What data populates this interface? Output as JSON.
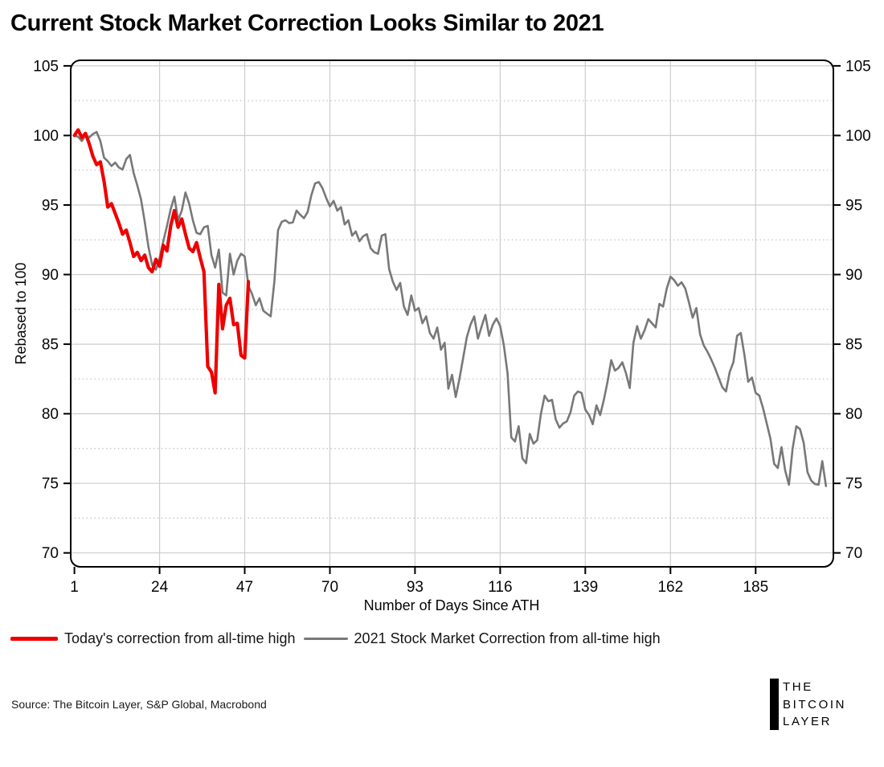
{
  "title": "Current Stock Market Correction Looks Similar to 2021",
  "source": "Source: The Bitcoin Layer, S&P Global, Macrobond",
  "logo": {
    "line1": "THE",
    "line2": "BITCOIN",
    "line3": "LAYER"
  },
  "colors": {
    "today_line": "#ee0000",
    "y2021_line": "#787878",
    "grid_major": "#cdcdcd",
    "grid_minor": "#bdbdbd",
    "axis": "#000000"
  },
  "chart_data": {
    "type": "line",
    "title": "Current Stock Market Correction Looks Similar to 2021",
    "xlabel": "Number of Days Since ATH",
    "ylabel": "Rebased to 100",
    "xlim": [
      0,
      206
    ],
    "ylim": [
      69,
      105.4
    ],
    "x_ticks": [
      1,
      24,
      47,
      70,
      93,
      116,
      139,
      162,
      185
    ],
    "y_ticks": [
      70,
      75,
      80,
      85,
      90,
      95,
      100,
      105
    ],
    "y_minor_ticks": [
      72.5,
      77.5,
      82.5,
      87.5,
      92.5,
      97.5,
      102.5
    ],
    "grid": "major solid both axes; minor horizontal dotted; y labels both sides",
    "legend_position": "bottom-left",
    "series": [
      {
        "name": "Today's correction from all-time high",
        "color": "#ee0000",
        "width": 4.2,
        "x_start": 1,
        "values": [
          100.0,
          100.4,
          99.85,
          100.15,
          99.4,
          98.5,
          97.9,
          98.1,
          96.7,
          94.85,
          95.1,
          94.4,
          93.7,
          92.9,
          93.2,
          92.3,
          91.3,
          91.6,
          91.0,
          91.4,
          90.5,
          90.2,
          91.1,
          90.6,
          92.1,
          91.7,
          93.5,
          94.6,
          93.4,
          94.0,
          92.9,
          91.9,
          91.65,
          92.3,
          91.2,
          90.2,
          83.4,
          83.0,
          81.5,
          89.3,
          86.1,
          87.8,
          88.3,
          86.4,
          86.5,
          84.2,
          84.0,
          89.5
        ]
      },
      {
        "name": "2021 Stock Market Correction from all-time high",
        "color": "#787878",
        "width": 2.6,
        "x_start": 1,
        "values": [
          100.0,
          99.9,
          99.6,
          100.0,
          99.85,
          100.1,
          100.25,
          99.6,
          98.4,
          98.15,
          97.8,
          98.05,
          97.7,
          97.55,
          98.3,
          98.6,
          97.3,
          96.4,
          95.4,
          93.8,
          92.0,
          90.7,
          90.35,
          91.2,
          92.4,
          93.5,
          94.7,
          95.6,
          93.9,
          94.6,
          95.9,
          95.1,
          93.9,
          93.0,
          92.9,
          93.4,
          93.5,
          91.4,
          90.5,
          91.8,
          88.7,
          88.5,
          91.5,
          90.0,
          91.0,
          91.5,
          91.3,
          89.2,
          88.6,
          87.8,
          88.3,
          87.4,
          87.2,
          87.0,
          89.5,
          93.2,
          93.8,
          93.9,
          93.7,
          93.75,
          94.6,
          94.3,
          94.05,
          94.5,
          95.7,
          96.55,
          96.65,
          96.2,
          95.5,
          94.9,
          95.3,
          94.6,
          94.85,
          93.6,
          93.9,
          92.8,
          93.1,
          92.4,
          92.75,
          92.9,
          91.9,
          91.6,
          91.5,
          92.8,
          92.9,
          90.4,
          89.5,
          88.9,
          89.4,
          87.7,
          87.1,
          88.5,
          87.4,
          87.6,
          86.5,
          87.0,
          85.8,
          85.4,
          86.2,
          84.6,
          85.1,
          81.8,
          82.8,
          81.2,
          82.5,
          84.0,
          85.5,
          86.4,
          87.0,
          85.4,
          86.3,
          87.1,
          85.6,
          86.4,
          86.85,
          86.3,
          84.9,
          82.9,
          78.3,
          78.0,
          79.1,
          76.8,
          76.45,
          78.55,
          77.85,
          78.1,
          80.0,
          81.3,
          80.9,
          81.0,
          79.6,
          79.0,
          79.3,
          79.45,
          80.1,
          81.3,
          81.6,
          81.5,
          80.3,
          79.9,
          79.25,
          80.6,
          79.9,
          81.0,
          82.3,
          83.85,
          83.1,
          83.3,
          83.7,
          82.9,
          81.85,
          85.1,
          86.3,
          85.4,
          86.0,
          86.8,
          86.5,
          86.2,
          87.9,
          87.7,
          89.0,
          89.85,
          89.6,
          89.2,
          89.45,
          89.0,
          88.0,
          86.9,
          87.6,
          85.7,
          84.9,
          84.45,
          83.9,
          83.3,
          82.6,
          81.9,
          81.6,
          83.0,
          83.7,
          85.6,
          85.8,
          84.2,
          82.3,
          82.6,
          81.5,
          81.3,
          80.4,
          79.3,
          78.2,
          76.4,
          76.1,
          77.6,
          75.9,
          74.9,
          77.5,
          79.1,
          78.9,
          77.9,
          75.8,
          75.2,
          74.95,
          74.9,
          76.6,
          74.8
        ]
      }
    ]
  }
}
